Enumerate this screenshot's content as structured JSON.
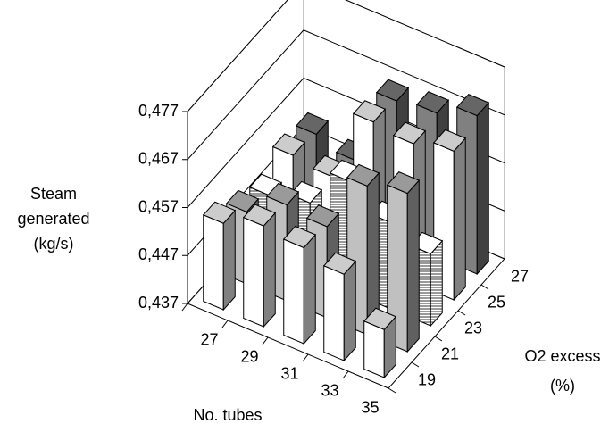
{
  "chart_data": {
    "type": "bar3d",
    "x_label": "No. tubes",
    "depth_label": [
      "O2 excess",
      "(%)"
    ],
    "z_label": [
      "Steam",
      "generated",
      "(kg/s)"
    ],
    "categories": [
      "27",
      "29",
      "31",
      "33",
      "35"
    ],
    "depth_categories": [
      "19",
      "21",
      "23",
      "25",
      "27"
    ],
    "series": [
      {
        "color": "#ffffff",
        "values": [
          0.455,
          0.458,
          0.457,
          0.455,
          0.447
        ]
      },
      {
        "color": "#c0c0c0",
        "values": [
          0.452,
          0.457,
          0.456,
          0.468,
          0.47
        ]
      },
      {
        "color": "#ffffff",
        "pattern": "horizontal-lines",
        "values": [
          0.45,
          0.452,
          0.46,
          0.455,
          0.452
        ]
      },
      {
        "color": "#ffffff",
        "values": [
          0.453,
          0.452,
          0.467,
          0.466,
          0.468
        ]
      },
      {
        "color": "#808080",
        "values": [
          0.452,
          0.45,
          0.466,
          0.467,
          0.47
        ]
      }
    ],
    "zlim": [
      0.437,
      0.477
    ],
    "zticks": [
      {
        "value": 0.437,
        "label": "0,437"
      },
      {
        "value": 0.447,
        "label": "0,447"
      },
      {
        "value": 0.457,
        "label": "0,457"
      },
      {
        "value": 0.467,
        "label": "0,467"
      },
      {
        "value": 0.477,
        "label": "0,477"
      }
    ],
    "grid": true
  }
}
